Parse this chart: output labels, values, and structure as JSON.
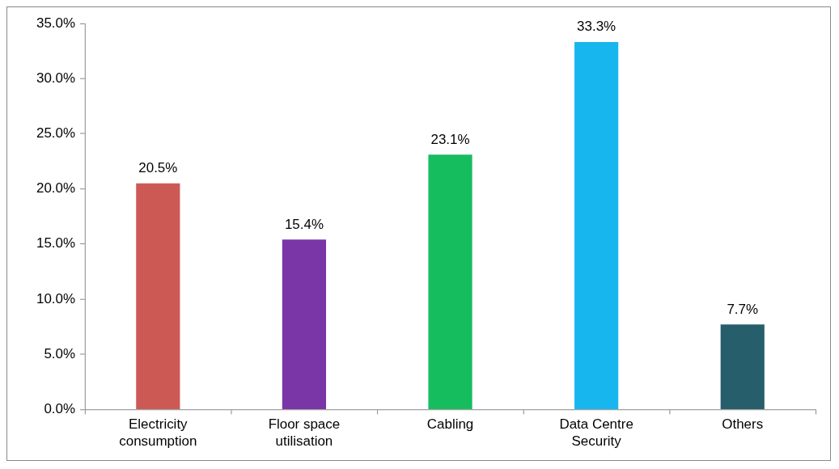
{
  "chart_data": {
    "type": "bar",
    "categories": [
      "Electricity consumption",
      "Floor space utilisation",
      "Cabling",
      "Data Centre Security",
      "Others"
    ],
    "values": [
      20.5,
      15.4,
      23.1,
      33.3,
      7.7
    ],
    "colors": [
      "#cd5955",
      "#7a35a6",
      "#15bd5e",
      "#17b6ef",
      "#275e6c"
    ],
    "value_labels": [
      "20.5%",
      "15.4%",
      "23.1%",
      "33.3%",
      "7.7%"
    ],
    "ylim": [
      0,
      35
    ],
    "yticks": [
      {
        "value": 0,
        "label": "0.0%"
      },
      {
        "value": 5,
        "label": "5.0%"
      },
      {
        "value": 10,
        "label": "10.0%"
      },
      {
        "value": 15,
        "label": "15.0%"
      },
      {
        "value": 20,
        "label": "20.0%"
      },
      {
        "value": 25,
        "label": "25.0%"
      },
      {
        "value": 30,
        "label": "30.0%"
      },
      {
        "value": 35,
        "label": "35.0%"
      }
    ],
    "grid": false,
    "legend": false
  }
}
